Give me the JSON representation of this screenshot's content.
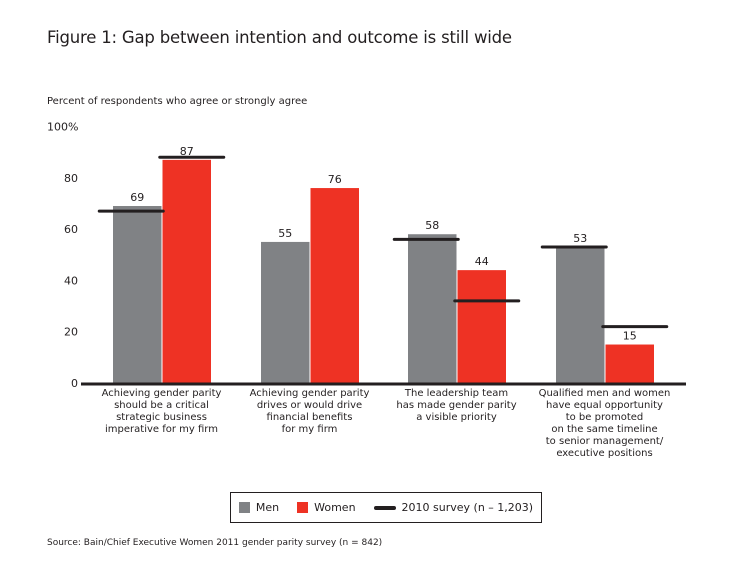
{
  "chart_data": {
    "type": "bar",
    "title": "Figure 1: Gap between intention and outcome is still wide",
    "ylabel": "Percent of respondents who agree or strongly agree",
    "xlabel": "",
    "ylim": [
      0,
      100
    ],
    "yticks": [
      {
        "value": 0,
        "label": "0"
      },
      {
        "value": 20,
        "label": "20"
      },
      {
        "value": 40,
        "label": "40"
      },
      {
        "value": 60,
        "label": "60"
      },
      {
        "value": 80,
        "label": "80"
      },
      {
        "value": 100,
        "label": "100%"
      }
    ],
    "grid": false,
    "legend_position": "bottom-center",
    "categories": [
      [
        "Achieving gender parity",
        "should be a critical",
        "strategic business",
        "imperative for my firm"
      ],
      [
        "Achieving gender parity",
        "drives or would drive",
        "financial benefits",
        "for my firm"
      ],
      [
        "The leadership team",
        "has made gender parity",
        "a visible priority"
      ],
      [
        "Qualified men and women",
        "have equal opportunity",
        "to be promoted",
        "on the same timeline",
        "to senior management/",
        "executive positions"
      ]
    ],
    "series": [
      {
        "name": "Men",
        "color": "#808285",
        "values": [
          69,
          55,
          58,
          53
        ],
        "labels": [
          "69",
          "55",
          "58",
          "53"
        ]
      },
      {
        "name": "Women",
        "color": "#ee3224",
        "values": [
          87,
          76,
          44,
          15
        ],
        "labels": [
          "87",
          "76",
          "44",
          "15"
        ]
      }
    ],
    "markers": {
      "name": "2010 survey (n – 1,203)",
      "color": "#231f20",
      "men": [
        67,
        null,
        56,
        53
      ],
      "women": [
        88,
        null,
        32,
        22
      ]
    },
    "source": "Source: Bain/Chief Executive Women 2011 gender parity survey (n = 842)"
  },
  "legend": {
    "men": "Men",
    "women": "Women",
    "survey": "2010 survey (n – 1,203)"
  }
}
